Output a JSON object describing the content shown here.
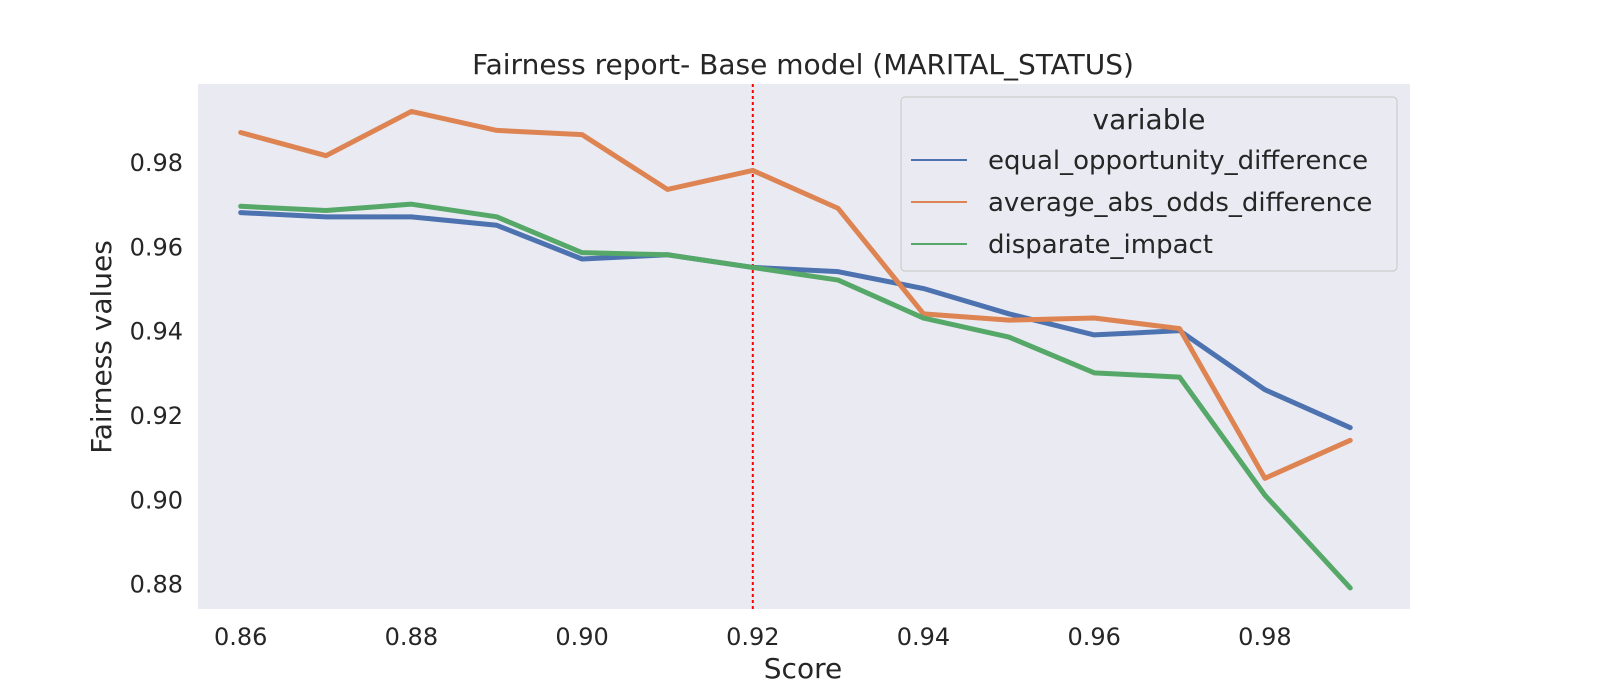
{
  "chart_data": {
    "type": "line",
    "title": "Fairness report- Base model (MARITAL_STATUS)",
    "xlabel": "Score",
    "ylabel": "Fairness values",
    "xlim": [
      0.855,
      0.997
    ],
    "ylim": [
      0.874,
      0.9985
    ],
    "xticks": [
      "0.86",
      "0.88",
      "0.90",
      "0.92",
      "0.94",
      "0.96",
      "0.98"
    ],
    "yticks": [
      "0.88",
      "0.90",
      "0.92",
      "0.94",
      "0.96",
      "0.98"
    ],
    "x": [
      0.86,
      0.87,
      0.88,
      0.89,
      0.9,
      0.91,
      0.92,
      0.93,
      0.94,
      0.95,
      0.96,
      0.97,
      0.98,
      0.99
    ],
    "series": [
      {
        "name": "equal_opportunity_difference",
        "color": "#4c72b0",
        "values": [
          0.968,
          0.967,
          0.967,
          0.965,
          0.957,
          0.958,
          0.955,
          0.954,
          0.95,
          0.944,
          0.939,
          0.94,
          0.926,
          0.917
        ]
      },
      {
        "name": "average_abs_odds_difference",
        "color": "#dd8452",
        "values": [
          0.987,
          0.9815,
          0.992,
          0.9875,
          0.9865,
          0.9735,
          0.978,
          0.969,
          0.944,
          0.9425,
          0.943,
          0.9405,
          0.905,
          0.914
        ]
      },
      {
        "name": "disparate_impact",
        "color": "#55a868",
        "values": [
          0.9695,
          0.9685,
          0.97,
          0.967,
          0.9585,
          0.958,
          0.955,
          0.952,
          0.943,
          0.9385,
          0.93,
          0.929,
          0.901,
          0.879
        ]
      }
    ],
    "reference_line": {
      "x": 0.92,
      "color": "#ff0000",
      "style": "dotted"
    },
    "legend": {
      "title": "variable",
      "position": "top-right"
    },
    "grid": false,
    "background_color": "#eaeaf2"
  }
}
